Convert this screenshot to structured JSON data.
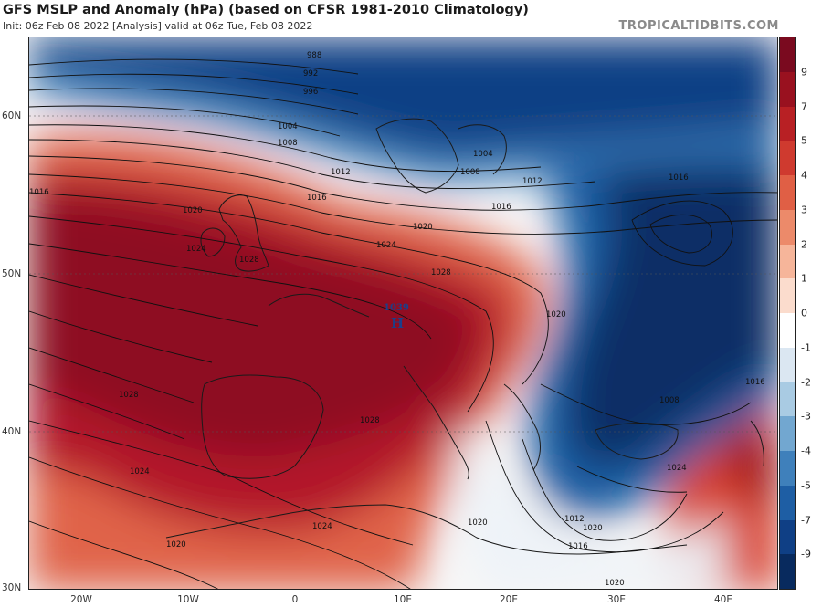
{
  "header": {
    "title": "GFS MSLP and Anomaly (hPa) (based on CFSR 1981-2010 Climatology)",
    "subtitle": "Init: 06z Feb 08 2022   [Analysis]   valid at 06z Tue, Feb 08 2022",
    "credit": "TROPICALTIDBITS.COM"
  },
  "map": {
    "lat_labels": [
      "60N",
      "50N",
      "40N",
      "30N"
    ],
    "lon_labels": [
      "20W",
      "10W",
      "0",
      "10E",
      "20E",
      "30E",
      "40E"
    ],
    "high_center": {
      "value": "1039",
      "letter": "H"
    },
    "isobar_labels": [
      "988",
      "992",
      "996",
      "1004",
      "1008",
      "1012",
      "1016",
      "1020",
      "1024",
      "1028",
      "1004",
      "1008",
      "1012",
      "1016",
      "1020",
      "1016",
      "1020",
      "1024",
      "1028",
      "1028",
      "1024",
      "1028",
      "1020",
      "1024",
      "1012",
      "1016",
      "1020",
      "1020",
      "1024",
      "1016",
      "1008",
      "1016",
      "1020"
    ]
  },
  "colorbar": {
    "labels": [
      "9",
      "7",
      "5",
      "4",
      "3",
      "2",
      "1",
      "0",
      "-1",
      "-2",
      "-3",
      "-4",
      "-5",
      "-7",
      "-9"
    ],
    "colors": [
      "#7a0a1f",
      "#99111f",
      "#b82024",
      "#cf3a2f",
      "#e05f45",
      "#ec8a6a",
      "#f6b59a",
      "#fbdccd",
      "#ffffff",
      "#dbe7f2",
      "#a9cbe3",
      "#72a7d0",
      "#3f80bb",
      "#1e5ea4",
      "#0f3f85",
      "#082a5e"
    ]
  }
}
